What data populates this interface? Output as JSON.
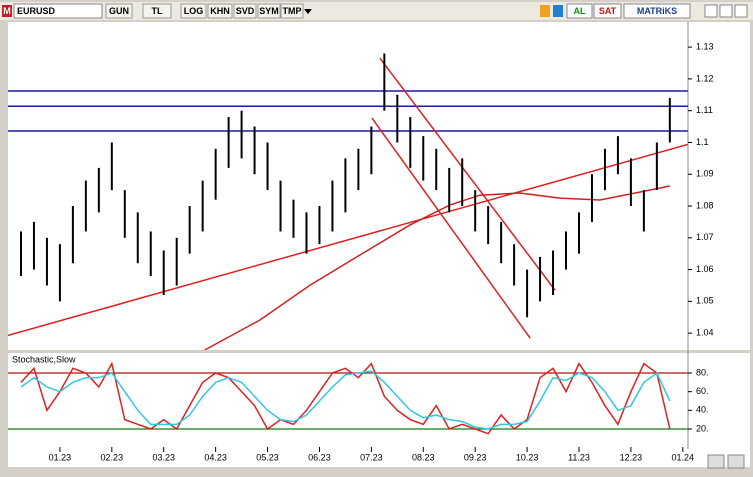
{
  "toolbar": {
    "logo": "M",
    "symbol": "EURUSD",
    "buttons": [
      "GUN",
      "TL",
      "LOG",
      "KHN",
      "SVD",
      "SYM",
      "TMP"
    ],
    "buy": "AL",
    "sell": "SAT",
    "brand": "MATRiKS"
  },
  "chart_data": [
    {
      "type": "ohlc",
      "color": "#000000",
      "xlim": [
        -1.0,
        12.1
      ],
      "ylim": [
        1.0347,
        1.1379
      ],
      "yticks": [
        1.04,
        1.05,
        1.06,
        1.07,
        1.08,
        1.09,
        1.1,
        1.11,
        1.12,
        1.13
      ],
      "xticks": [
        {
          "value": 0,
          "label": "01.23"
        },
        {
          "value": 1,
          "label": "02.23"
        },
        {
          "value": 2,
          "label": "03.23"
        },
        {
          "value": 3,
          "label": "04.23"
        },
        {
          "value": 4,
          "label": "05.23"
        },
        {
          "value": 5,
          "label": "06.23"
        },
        {
          "value": 6,
          "label": "07.23"
        },
        {
          "value": 7,
          "label": "08.23"
        },
        {
          "value": 8,
          "label": "09.23"
        },
        {
          "value": 9,
          "label": "10.23"
        },
        {
          "value": 10,
          "label": "11.23"
        },
        {
          "value": 11,
          "label": "12.23"
        },
        {
          "value": 12,
          "label": "01.24"
        }
      ],
      "x": [
        -0.75,
        -0.5,
        -0.25,
        0,
        0.25,
        0.5,
        0.75,
        1.0,
        1.25,
        1.5,
        1.75,
        2.0,
        2.25,
        2.5,
        2.75,
        3.0,
        3.25,
        3.5,
        3.75,
        4.0,
        4.25,
        4.5,
        4.75,
        5.0,
        5.25,
        5.5,
        5.75,
        6.0,
        6.25,
        6.5,
        6.75,
        7.0,
        7.25,
        7.5,
        7.75,
        8.0,
        8.25,
        8.5,
        8.75,
        9.0,
        9.25,
        9.5,
        9.75,
        10.0,
        10.25,
        10.5,
        10.75,
        11.0,
        11.25,
        11.5,
        11.75
      ],
      "low": [
        1.058,
        1.06,
        1.055,
        1.05,
        1.062,
        1.072,
        1.078,
        1.085,
        1.07,
        1.062,
        1.058,
        1.052,
        1.055,
        1.065,
        1.072,
        1.082,
        1.092,
        1.095,
        1.09,
        1.085,
        1.072,
        1.07,
        1.065,
        1.068,
        1.072,
        1.078,
        1.085,
        1.09,
        1.11,
        1.1,
        1.092,
        1.088,
        1.085,
        1.078,
        1.08,
        1.072,
        1.068,
        1.062,
        1.055,
        1.045,
        1.05,
        1.052,
        1.06,
        1.065,
        1.075,
        1.085,
        1.09,
        1.08,
        1.072,
        1.085,
        1.1
      ],
      "high": [
        1.072,
        1.075,
        1.07,
        1.068,
        1.08,
        1.088,
        1.092,
        1.1,
        1.085,
        1.078,
        1.072,
        1.066,
        1.07,
        1.08,
        1.088,
        1.098,
        1.108,
        1.11,
        1.105,
        1.1,
        1.088,
        1.082,
        1.078,
        1.08,
        1.088,
        1.095,
        1.098,
        1.105,
        1.128,
        1.115,
        1.108,
        1.102,
        1.098,
        1.092,
        1.095,
        1.085,
        1.08,
        1.075,
        1.068,
        1.06,
        1.064,
        1.066,
        1.072,
        1.078,
        1.09,
        1.098,
        1.102,
        1.095,
        1.085,
        1.1,
        1.114
      ],
      "levels": {
        "color": "#1a1aa0",
        "values": [
          1.1162,
          1.1114,
          1.1036
        ]
      },
      "trendlines": {
        "color": "#e02020",
        "lines": [
          {
            "x": [
              -1.0,
              12.1
            ],
            "y": [
              1.0393,
              1.0994
            ]
          },
          {
            "x": [
              6.166,
              9.54
            ],
            "y": [
              1.1265,
              1.0535
            ]
          },
          {
            "x": [
              6.01,
              9.06
            ],
            "y": [
              1.1077,
              1.0384
            ]
          }
        ]
      },
      "ma": {
        "color": "#d02020",
        "x": [
          2.79,
          3.85,
          4.82,
          5.78,
          6.74,
          7.51,
          8.09,
          8.86,
          9.63,
          10.4,
          11.18,
          11.75
        ],
        "values": [
          1.0347,
          1.0441,
          1.0551,
          1.0646,
          1.074,
          1.0803,
          1.0834,
          1.0841,
          1.0825,
          1.0819,
          1.0844,
          1.0863
        ]
      }
    },
    {
      "type": "line",
      "title": "Stochastic,Slow",
      "xlim": [
        -1.0,
        12.1
      ],
      "ylim": [
        0.7,
        99.3
      ],
      "yticks": [
        {
          "value": 20,
          "label": "20."
        },
        {
          "value": 40,
          "label": "40."
        },
        {
          "value": 60,
          "label": "60."
        },
        {
          "value": 80,
          "label": "80."
        }
      ],
      "levels": [
        {
          "value": 80,
          "color": "#b01010"
        },
        {
          "value": 20,
          "color": "#108010"
        }
      ],
      "x": [
        -0.75,
        -0.5,
        -0.25,
        0,
        0.25,
        0.5,
        0.75,
        1.0,
        1.25,
        1.5,
        1.75,
        2.0,
        2.25,
        2.5,
        2.75,
        3.0,
        3.25,
        3.5,
        3.75,
        4.0,
        4.25,
        4.5,
        4.75,
        5.0,
        5.25,
        5.5,
        5.75,
        6.0,
        6.25,
        6.5,
        6.75,
        7.0,
        7.25,
        7.5,
        7.75,
        8.0,
        8.25,
        8.5,
        8.75,
        9.0,
        9.25,
        9.5,
        9.75,
        10.0,
        10.25,
        10.5,
        10.75,
        11.0,
        11.25,
        11.5,
        11.75
      ],
      "series": [
        {
          "color": "#e02020",
          "values": [
            70,
            85,
            40,
            60,
            85,
            80,
            65,
            90,
            30,
            25,
            20,
            30,
            20,
            45,
            70,
            80,
            75,
            60,
            45,
            20,
            30,
            25,
            40,
            60,
            80,
            85,
            75,
            90,
            55,
            40,
            30,
            25,
            45,
            20,
            25,
            20,
            15,
            35,
            20,
            30,
            75,
            85,
            60,
            90,
            70,
            45,
            25,
            60,
            90,
            80,
            20
          ]
        },
        {
          "color": "#30c8e0",
          "values": [
            65,
            75,
            65,
            60,
            70,
            75,
            75,
            80,
            60,
            40,
            25,
            25,
            25,
            35,
            55,
            70,
            75,
            70,
            55,
            40,
            30,
            28,
            35,
            50,
            65,
            78,
            80,
            82,
            70,
            55,
            40,
            32,
            35,
            30,
            28,
            22,
            20,
            25,
            25,
            28,
            50,
            75,
            72,
            80,
            75,
            60,
            40,
            45,
            70,
            80,
            50
          ]
        }
      ]
    }
  ]
}
